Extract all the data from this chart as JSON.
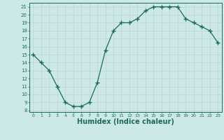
{
  "x": [
    0,
    1,
    2,
    3,
    4,
    5,
    6,
    7,
    8,
    9,
    10,
    11,
    12,
    13,
    14,
    15,
    16,
    17,
    18,
    19,
    20,
    21,
    22,
    23
  ],
  "y": [
    15,
    14,
    13,
    11,
    9,
    8.5,
    8.5,
    9,
    11.5,
    15.5,
    18,
    19,
    19,
    19.5,
    20.5,
    21,
    21,
    21,
    21,
    19.5,
    19,
    18.5,
    18,
    16.5
  ],
  "line_color": "#1a6b5a",
  "marker": "+",
  "marker_size": 4,
  "bg_color": "#cce9e7",
  "grid_color": "#c0d8d6",
  "tick_color": "#1a6b5a",
  "xlabel": "Humidex (Indice chaleur)",
  "xlabel_fontsize": 7,
  "ylabel_ticks": [
    8,
    9,
    10,
    11,
    12,
    13,
    14,
    15,
    16,
    17,
    18,
    19,
    20,
    21
  ],
  "xlim": [
    -0.5,
    23.5
  ],
  "ylim": [
    7.8,
    21.5
  ]
}
